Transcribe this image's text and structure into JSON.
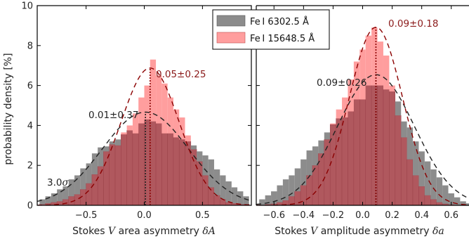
{
  "chart_data": {
    "type": "bar",
    "ylabel": "probability density [%]",
    "ylim": [
      0,
      10
    ],
    "yticks": [
      0,
      2,
      4,
      6,
      8,
      10
    ],
    "colors": {
      "gray": "#8c8c8c",
      "red": "#ff9e9e",
      "overlap": "#b0585e",
      "gray_fit": "#222222",
      "red_fit": "#8b0000",
      "annot_red": "#8b1a1a",
      "annot_gray": "#222222"
    },
    "legend": {
      "position": "top-center",
      "entries": [
        {
          "id": "gray",
          "label": "Fe I 6302.5 Å",
          "color": "#8c8c8c"
        },
        {
          "id": "red",
          "label": "Fe I 15648.5 Å",
          "color": "#ff9e9e"
        }
      ]
    },
    "panels": [
      {
        "id": "left",
        "xlabel_prefix": "Stokes ",
        "xlabel_var": "V",
        "xlabel_mid": " area asymmetry ",
        "xlabel_sym": "δA",
        "xlim": [
          -0.92,
          0.92
        ],
        "xticks": [
          -0.5,
          0.0,
          0.5
        ],
        "xtick_labels": [
          "−0.5",
          "0.0",
          "0.5"
        ],
        "bin_start": -0.9,
        "bin_width": 0.05,
        "series": [
          {
            "name": "Fe I 6302.5 Å",
            "mean": 0.01,
            "std": 0.37,
            "values": [
              0.3,
              0.45,
              0.6,
              0.8,
              0.95,
              1.3,
              1.5,
              1.85,
              2.1,
              2.6,
              2.9,
              2.95,
              3.2,
              3.3,
              3.55,
              3.75,
              3.6,
              4.1,
              4.3,
              4.2,
              4.1,
              3.6,
              3.6,
              3.4,
              3.3,
              3.2,
              3.0,
              2.7,
              2.5,
              2.3,
              1.8,
              1.5,
              1.2,
              0.9,
              0.7,
              0.45
            ]
          },
          {
            "name": "Fe I 15648.5 Å",
            "mean": 0.05,
            "std": 0.25,
            "values": [
              0.05,
              0.1,
              0.15,
              0.2,
              0.3,
              0.45,
              0.55,
              0.8,
              1.1,
              1.55,
              1.95,
              2.7,
              3.05,
              3.0,
              3.65,
              4.0,
              4.6,
              5.4,
              6.0,
              7.3,
              6.5,
              6.1,
              5.4,
              4.8,
              4.4,
              3.5,
              2.8,
              2.2,
              1.5,
              0.9,
              0.5,
              0.3,
              0.15,
              0.1,
              0.05,
              0.05
            ]
          }
        ],
        "annotations": {
          "red_text": "0.05±0.25",
          "gray_text": "0.01±0.37",
          "sigma_text": "3.0σ"
        }
      },
      {
        "id": "right",
        "xlabel_prefix": "Stokes ",
        "xlabel_var": "V",
        "xlabel_mid": " amplitude asymmetry ",
        "xlabel_sym": "δa",
        "xlim": [
          -0.72,
          0.72
        ],
        "xticks": [
          -0.6,
          -0.4,
          -0.2,
          0.0,
          0.2,
          0.4,
          0.6
        ],
        "xtick_labels": [
          "−0.6",
          "−0.4",
          "−0.2",
          "0.0",
          "0.2",
          "0.4",
          "0.6"
        ],
        "bin_start": -0.7,
        "bin_width": 0.04,
        "series": [
          {
            "name": "Fe I 6302.5 Å",
            "mean": 0.09,
            "std": 0.26,
            "values": [
              0.3,
              0.5,
              0.7,
              1.0,
              1.3,
              1.5,
              1.85,
              2.3,
              2.75,
              2.95,
              3.25,
              3.65,
              4.05,
              4.35,
              4.4,
              4.7,
              5.3,
              5.3,
              6.0,
              6.0,
              6.0,
              5.8,
              5.7,
              5.2,
              4.2,
              3.9,
              3.2,
              2.7,
              2.2,
              1.8,
              1.4,
              1.0,
              0.6,
              0.4,
              0.2,
              0.1
            ]
          },
          {
            "name": "Fe I 15648.5 Å",
            "mean": 0.09,
            "std": 0.18,
            "values": [
              0.02,
              0.05,
              0.08,
              0.15,
              0.25,
              0.45,
              0.7,
              1.0,
              1.5,
              2.0,
              2.6,
              3.3,
              4.1,
              4.8,
              5.4,
              6.3,
              7.2,
              7.8,
              8.5,
              8.9,
              8.2,
              7.5,
              6.0,
              4.5,
              3.4,
              2.3,
              1.5,
              0.95,
              0.5,
              0.3,
              0.15,
              0.08,
              0.04,
              0.02,
              0.01,
              0.01
            ]
          }
        ],
        "annotations": {
          "red_text": "0.09±0.18",
          "gray_text": "0.09±0.26"
        }
      }
    ]
  }
}
